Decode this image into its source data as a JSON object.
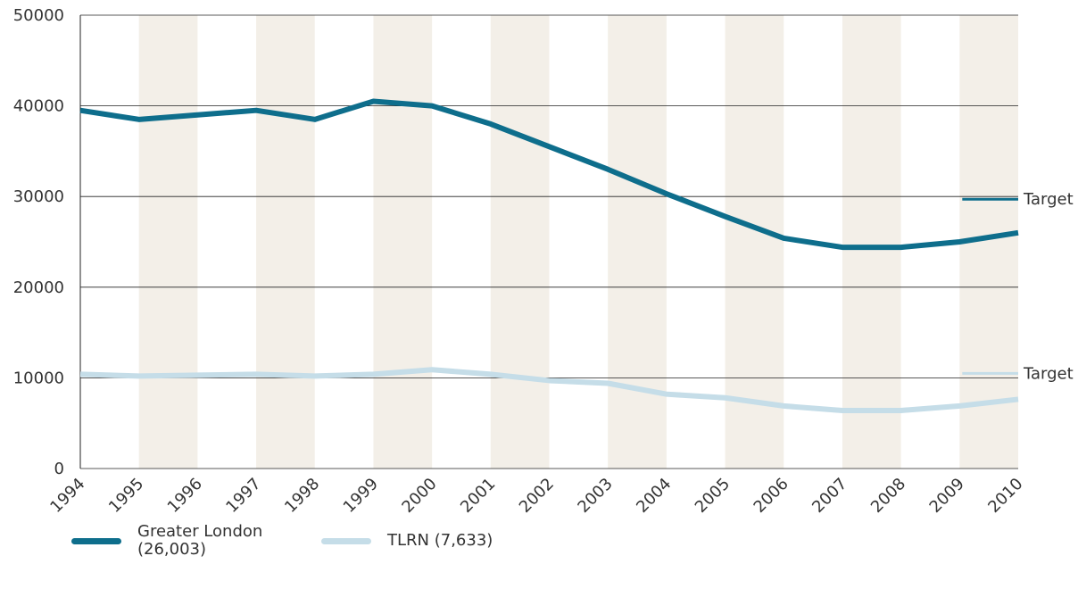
{
  "chart_data": {
    "type": "line",
    "x": [
      1994,
      1995,
      1996,
      1997,
      1998,
      1999,
      2000,
      2001,
      2002,
      2003,
      2004,
      2005,
      2006,
      2007,
      2008,
      2009,
      2010
    ],
    "xlim": [
      1994,
      2010
    ],
    "xticks": [
      1994,
      1995,
      1996,
      1997,
      1998,
      1999,
      2000,
      2001,
      2002,
      2003,
      2004,
      2005,
      2006,
      2007,
      2008,
      2009,
      2010
    ],
    "ylim": [
      0,
      50000
    ],
    "yticks": [
      0,
      10000,
      20000,
      30000,
      40000,
      50000
    ],
    "grid": true,
    "series": [
      {
        "name": "Greater London (26,003)",
        "color": "#0e6e8c",
        "values": [
          39500,
          38500,
          39000,
          39500,
          38500,
          40500,
          40000,
          38000,
          35500,
          33000,
          30300,
          27800,
          25400,
          24400,
          24400,
          25000,
          26003
        ]
      },
      {
        "name": "TLRN (7,633)",
        "color": "#c5dde8",
        "values": [
          10400,
          10200,
          10300,
          10400,
          10200,
          10400,
          10900,
          10400,
          9700,
          9400,
          8200,
          7800,
          6900,
          6400,
          6400,
          6900,
          7633
        ]
      }
    ],
    "targets": [
      {
        "label": "Target",
        "value": 29700
      },
      {
        "label": "Target",
        "value": 10500
      }
    ]
  }
}
